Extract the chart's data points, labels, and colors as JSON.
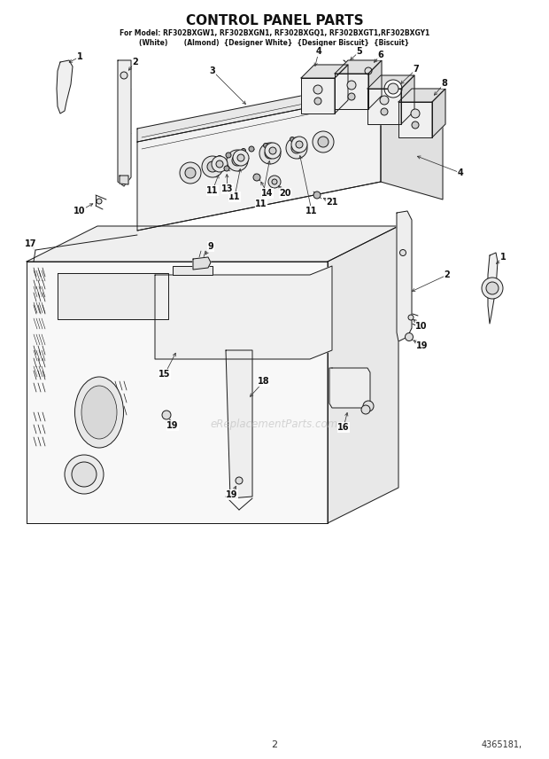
{
  "title": "CONTROL PANEL PARTS",
  "subtitle1": "For Model: RF302BXGW1, RF302BXGN1, RF302BXGQ1, RF302BXGT1,RF302BXGY1",
  "subtitle2": "(White)       (Almond)  {Designer White}  {Designer Biscuit}  {Biscuit}",
  "page_number": "2",
  "part_number": "4365181,",
  "watermark": "eReplacementParts.com",
  "bg_color": "#ffffff",
  "lc": "#1a1a1a",
  "lw": 0.7,
  "title_fs": 11,
  "sub_fs": 5.5,
  "label_fs": 7.0
}
